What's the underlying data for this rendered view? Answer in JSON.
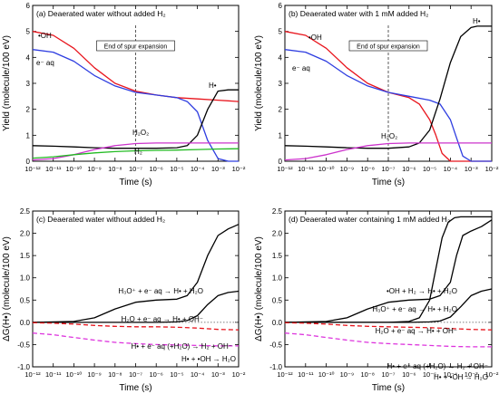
{
  "chart_data": [
    {
      "type": "line",
      "panel_label": "(a) Deaerated water without added H₂",
      "xlabel": "Time (s)",
      "ylabel": "Yield (molecule/100 eV)",
      "xscale": "log",
      "xlim": [
        -12,
        -2
      ],
      "ylim": [
        0,
        6
      ],
      "x_ticks": [
        "10⁻¹²",
        "10⁻¹¹",
        "10⁻¹⁰",
        "10⁻⁹",
        "10⁻⁸",
        "10⁻⁷",
        "10⁻⁶",
        "10⁻⁵",
        "10⁻⁴",
        "10⁻³",
        "10⁻²"
      ],
      "y_ticks": [
        "0",
        "1",
        "2",
        "3",
        "4",
        "5",
        "6"
      ],
      "vline": {
        "x": -7,
        "label": "End of spur expansion"
      },
      "series": [
        {
          "name": "•OH",
          "color": "#e8141c",
          "x": [
            -12,
            -11,
            -10,
            -9,
            -8,
            -7,
            -6,
            -5,
            -4,
            -3,
            -2
          ],
          "y": [
            5.0,
            4.85,
            4.35,
            3.6,
            3.0,
            2.7,
            2.55,
            2.45,
            2.4,
            2.35,
            2.3
          ]
        },
        {
          "name": "e⁻ aq",
          "color": "#2e3de0",
          "x": [
            -12,
            -11,
            -10,
            -9,
            -8,
            -7,
            -6,
            -5,
            -4.5,
            -4,
            -3.5,
            -3,
            -2.5,
            -2
          ],
          "y": [
            4.3,
            4.2,
            3.85,
            3.3,
            2.9,
            2.65,
            2.55,
            2.45,
            2.3,
            1.9,
            0.8,
            0.1,
            0,
            0
          ]
        },
        {
          "name": "H•",
          "color": "#000000",
          "x": [
            -12,
            -11,
            -10,
            -9,
            -8,
            -7,
            -6,
            -5,
            -4.5,
            -4,
            -3.5,
            -3,
            -2.5,
            -2
          ],
          "y": [
            0.6,
            0.58,
            0.55,
            0.52,
            0.5,
            0.5,
            0.5,
            0.52,
            0.6,
            1.0,
            2.0,
            2.7,
            2.75,
            2.75
          ]
        },
        {
          "name": "H₂O₂",
          "color": "#cc33cc",
          "x": [
            -12,
            -11,
            -10,
            -9,
            -8,
            -7,
            -6,
            -5,
            -4,
            -3,
            -2
          ],
          "y": [
            0.05,
            0.1,
            0.25,
            0.45,
            0.6,
            0.68,
            0.7,
            0.7,
            0.7,
            0.7,
            0.7
          ]
        },
        {
          "name": "H₂",
          "color": "#22bb22",
          "x": [
            -12,
            -11,
            -10,
            -9,
            -8,
            -7,
            -6,
            -5,
            -4,
            -3,
            -2
          ],
          "y": [
            0.12,
            0.17,
            0.25,
            0.32,
            0.37,
            0.4,
            0.42,
            0.43,
            0.45,
            0.47,
            0.48
          ]
        }
      ]
    },
    {
      "type": "line",
      "panel_label": "(b) Deaerated water with 1 mM added H₂",
      "xlabel": "Time (s)",
      "ylabel": "Yield (molecule/100 eV)",
      "xscale": "log",
      "xlim": [
        -12,
        -2
      ],
      "ylim": [
        0,
        6
      ],
      "x_ticks": [
        "10⁻¹²",
        "10⁻¹¹",
        "10⁻¹⁰",
        "10⁻⁹",
        "10⁻⁸",
        "10⁻⁷",
        "10⁻⁶",
        "10⁻⁵",
        "10⁻⁴",
        "10⁻³",
        "10⁻²"
      ],
      "y_ticks": [
        "0",
        "1",
        "2",
        "3",
        "4",
        "5",
        "6"
      ],
      "vline": {
        "x": -7,
        "label": "End of spur expansion"
      },
      "series": [
        {
          "name": "•OH",
          "color": "#e8141c",
          "x": [
            -12,
            -11,
            -10,
            -9,
            -8,
            -7,
            -6,
            -5.5,
            -5,
            -4.7,
            -4.4,
            -4,
            -3,
            -2
          ],
          "y": [
            5.0,
            4.85,
            4.35,
            3.6,
            3.0,
            2.65,
            2.45,
            2.2,
            1.6,
            1.0,
            0.3,
            0,
            0,
            0
          ]
        },
        {
          "name": "e⁻ aq",
          "color": "#2e3de0",
          "x": [
            -12,
            -11,
            -10,
            -9,
            -8,
            -7,
            -6,
            -5,
            -4.5,
            -4,
            -3.7,
            -3.4,
            -3,
            -2
          ],
          "y": [
            4.3,
            4.2,
            3.85,
            3.3,
            2.9,
            2.65,
            2.5,
            2.35,
            2.2,
            1.6,
            0.9,
            0.2,
            0,
            0
          ]
        },
        {
          "name": "H•",
          "color": "#000000",
          "x": [
            -12,
            -11,
            -10,
            -9,
            -8,
            -7,
            -6,
            -5.5,
            -5,
            -4.5,
            -4,
            -3.5,
            -3,
            -2.7,
            -2
          ],
          "y": [
            0.6,
            0.58,
            0.55,
            0.52,
            0.5,
            0.5,
            0.55,
            0.7,
            1.2,
            2.4,
            3.8,
            4.8,
            5.15,
            5.2,
            5.2
          ]
        },
        {
          "name": "H₂O₂",
          "color": "#cc33cc",
          "x": [
            -12,
            -11,
            -10,
            -9,
            -8,
            -7,
            -6,
            -5,
            -4,
            -3,
            -2
          ],
          "y": [
            0.05,
            0.1,
            0.25,
            0.45,
            0.6,
            0.68,
            0.7,
            0.7,
            0.7,
            0.7,
            0.7
          ]
        }
      ]
    },
    {
      "type": "line",
      "panel_label": "(c) Deaerated water without added H₂",
      "xlabel": "Time (s)",
      "ylabel": "ΔG(H•) (molecule/100 eV)",
      "xscale": "log",
      "xlim": [
        -12,
        -2
      ],
      "ylim": [
        -1.0,
        2.5
      ],
      "x_ticks": [
        "10⁻¹²",
        "10⁻¹¹",
        "10⁻¹⁰",
        "10⁻⁹",
        "10⁻⁸",
        "10⁻⁷",
        "10⁻⁶",
        "10⁻⁵",
        "10⁻⁴",
        "10⁻³",
        "10⁻²"
      ],
      "y_ticks": [
        "-1.0",
        "-0.5",
        "0.0",
        "0.5",
        "1.0",
        "1.5",
        "2.0",
        "2.5"
      ],
      "series": [
        {
          "name": "H₃O⁺ + e⁻ aq → H• + H₂O",
          "color": "#000000",
          "dash": "solid",
          "x": [
            -12,
            -10,
            -9,
            -8,
            -7,
            -6,
            -5,
            -4.5,
            -4,
            -3.5,
            -3,
            -2.5,
            -2
          ],
          "y": [
            0,
            0.02,
            0.1,
            0.3,
            0.45,
            0.5,
            0.52,
            0.6,
            0.9,
            1.5,
            1.95,
            2.1,
            2.2
          ]
        },
        {
          "name": "H₂O + e⁻ aq → H• + OH⁻",
          "color": "#000000",
          "dash": "solid",
          "x": [
            -12,
            -7,
            -6,
            -5,
            -4.5,
            -4,
            -3.5,
            -3,
            -2.5,
            -2
          ],
          "y": [
            0,
            0,
            0,
            0.01,
            0.04,
            0.15,
            0.4,
            0.6,
            0.67,
            0.7
          ]
        },
        {
          "name": "H• + e⁻ aq (+H₂O) → H₂ + OH⁻",
          "color": "#e8141c",
          "dash": "dash",
          "x": [
            -12,
            -11,
            -10,
            -9,
            -8,
            -7,
            -6,
            -5,
            -4,
            -3,
            -2
          ],
          "y": [
            -0.01,
            -0.02,
            -0.04,
            -0.07,
            -0.09,
            -0.1,
            -0.1,
            -0.11,
            -0.13,
            -0.16,
            -0.17
          ]
        },
        {
          "name": "H• + •OH → H₂O",
          "color": "#dd33dd",
          "dash": "dash",
          "x": [
            -12,
            -11,
            -10,
            -9,
            -8,
            -7,
            -6,
            -5,
            -4,
            -3,
            -2
          ],
          "y": [
            -0.24,
            -0.28,
            -0.34,
            -0.4,
            -0.45,
            -0.48,
            -0.5,
            -0.51,
            -0.52,
            -0.53,
            -0.53
          ]
        }
      ]
    },
    {
      "type": "line",
      "panel_label": "(d) Deaerated water containing 1 mM added H₂",
      "xlabel": "Time (s)",
      "ylabel": "ΔG(H•) (molecule/100 eV)",
      "xscale": "log",
      "xlim": [
        -12,
        -2
      ],
      "ylim": [
        -1.0,
        2.5
      ],
      "x_ticks": [
        "10⁻¹²",
        "10⁻¹¹",
        "10⁻¹⁰",
        "10⁻⁹",
        "10⁻⁸",
        "10⁻⁷",
        "10⁻⁶",
        "10⁻⁵",
        "10⁻⁴",
        "10⁻³",
        "10⁻²"
      ],
      "y_ticks": [
        "-1.0",
        "-0.5",
        "0.0",
        "0.5",
        "1.0",
        "1.5",
        "2.0",
        "2.5"
      ],
      "series": [
        {
          "name": "•OH + H₂ → H• + H₂O",
          "color": "#000000",
          "dash": "solid",
          "x": [
            -12,
            -7,
            -6,
            -5.5,
            -5,
            -4.7,
            -4.4,
            -4.1,
            -3.8,
            -3.5,
            -3,
            -2
          ],
          "y": [
            0,
            0,
            0.02,
            0.1,
            0.5,
            1.2,
            1.9,
            2.25,
            2.35,
            2.37,
            2.37,
            2.37
          ]
        },
        {
          "name": "H₃O⁺ + e⁻ aq → H• + H₂O",
          "color": "#000000",
          "dash": "solid",
          "x": [
            -12,
            -10,
            -9,
            -8,
            -7,
            -6,
            -5,
            -4.5,
            -4,
            -3.7,
            -3.4,
            -3,
            -2.5,
            -2
          ],
          "y": [
            0,
            0.02,
            0.1,
            0.3,
            0.45,
            0.5,
            0.52,
            0.6,
            0.9,
            1.5,
            1.95,
            2.05,
            2.15,
            2.3
          ]
        },
        {
          "name": "H₂O + e⁻ aq → H• + OH⁻",
          "color": "#000000",
          "dash": "solid",
          "x": [
            -12,
            -6,
            -5,
            -4.5,
            -4,
            -3.5,
            -3,
            -2.5,
            -2
          ],
          "y": [
            0,
            0,
            0.01,
            0.03,
            0.12,
            0.35,
            0.6,
            0.7,
            0.75
          ]
        },
        {
          "name": "H• + e⁻ aq (+H₂O) → H₂ + OH⁻",
          "color": "#e8141c",
          "dash": "dash",
          "x": [
            -12,
            -11,
            -10,
            -9,
            -8,
            -7,
            -6,
            -5,
            -4,
            -3,
            -2
          ],
          "y": [
            -0.01,
            -0.02,
            -0.04,
            -0.07,
            -0.09,
            -0.1,
            -0.11,
            -0.12,
            -0.14,
            -0.16,
            -0.17
          ]
        },
        {
          "name": "H• + •OH → H₂O",
          "color": "#dd33dd",
          "dash": "dash",
          "x": [
            -12,
            -11,
            -10,
            -9,
            -8,
            -7,
            -6,
            -5,
            -4,
            -3,
            -2
          ],
          "y": [
            -0.24,
            -0.28,
            -0.34,
            -0.4,
            -0.45,
            -0.48,
            -0.5,
            -0.52,
            -0.54,
            -0.55,
            -0.55
          ]
        }
      ]
    }
  ]
}
